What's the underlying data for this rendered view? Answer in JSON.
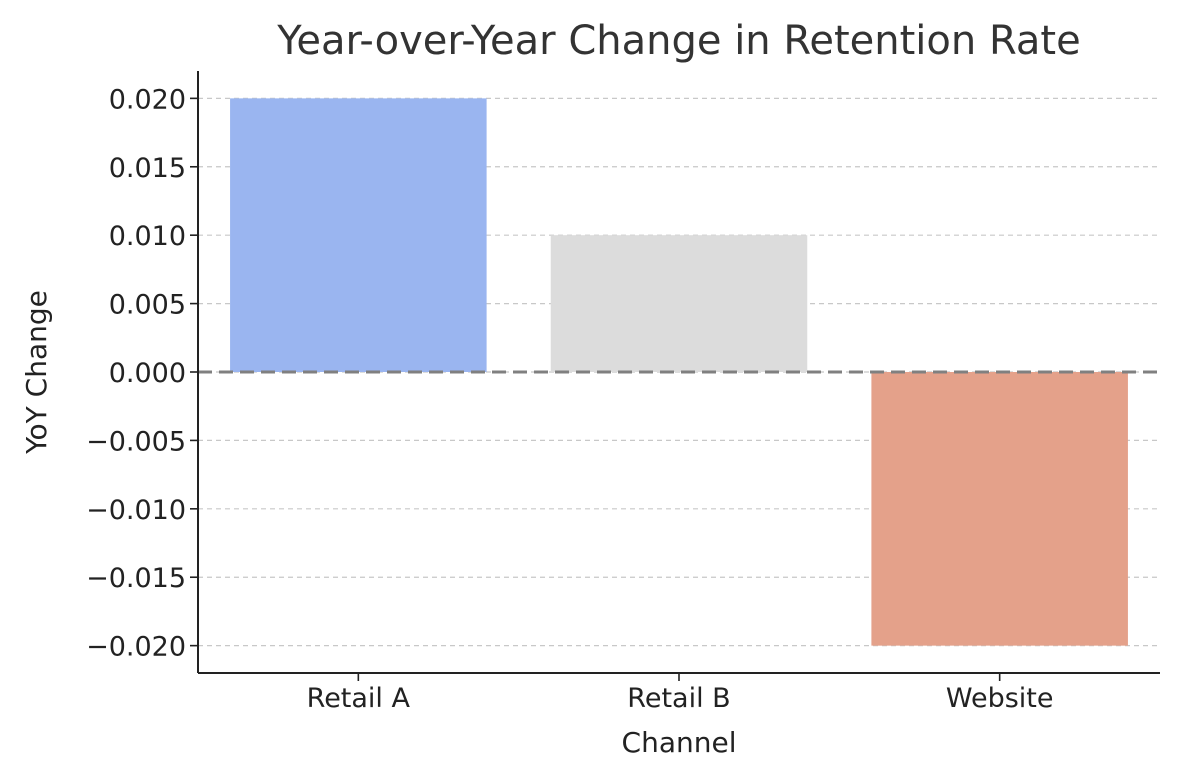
{
  "chart_data": {
    "type": "bar",
    "title": "Year-over-Year Change in Retention Rate",
    "xlabel": "Channel",
    "ylabel": "YoY Change",
    "categories": [
      "Retail A",
      "Retail B",
      "Website"
    ],
    "values": [
      0.02,
      0.01,
      -0.02
    ],
    "colors": [
      "#9ab5f0",
      "#dcdcdc",
      "#e4a18a"
    ],
    "ylim": [
      -0.022,
      0.022
    ],
    "yticks": [
      0.02,
      0.015,
      0.01,
      0.005,
      0.0,
      -0.005,
      -0.01,
      -0.015,
      -0.02
    ],
    "ytick_labels": [
      "0.020",
      "0.015",
      "0.010",
      "0.005",
      "0.000",
      "−0.005",
      "−0.010",
      "−0.015",
      "−0.020"
    ],
    "grid": "y-dashed",
    "zero_line": "dashed-gray"
  }
}
